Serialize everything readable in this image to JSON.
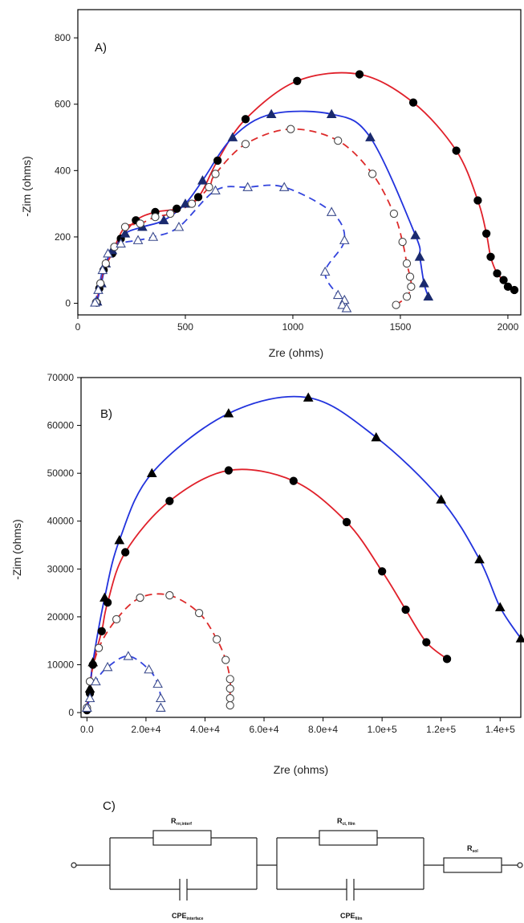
{
  "chart_data": [
    {
      "panel": "A)",
      "type": "scatter",
      "xlabel": "Zre (ohms)",
      "ylabel": "-Zim (ohms)",
      "xlim": [
        0,
        2060
      ],
      "ylim": [
        -35,
        885
      ],
      "xticks": [
        0,
        500,
        1000,
        1500,
        2000
      ],
      "yticks": [
        0,
        200,
        400,
        600,
        800
      ],
      "series": [
        {
          "marker": "filled-circle",
          "color": "#000000",
          "points": [
            [
              88,
              2
            ],
            [
              100,
              45
            ],
            [
              120,
              100
            ],
            [
              160,
              150
            ],
            [
              200,
              195
            ],
            [
              270,
              250
            ],
            [
              360,
              275
            ],
            [
              460,
              285
            ],
            [
              560,
              320
            ],
            [
              650,
              430
            ],
            [
              780,
              555
            ],
            [
              1020,
              670
            ],
            [
              1310,
              690
            ],
            [
              1560,
              605
            ],
            [
              1760,
              460
            ],
            [
              1860,
              310
            ],
            [
              1900,
              210
            ],
            [
              1920,
              140
            ],
            [
              1950,
              90
            ],
            [
              1980,
              70
            ],
            [
              2000,
              50
            ],
            [
              2030,
              40
            ]
          ]
        },
        {
          "marker": "filled-triangle",
          "color": "#1a2a6e",
          "points": [
            [
              90,
              5
            ],
            [
              110,
              60
            ],
            [
              130,
              120
            ],
            [
              160,
              160
            ],
            [
              220,
              210
            ],
            [
              300,
              230
            ],
            [
              400,
              250
            ],
            [
              500,
              300
            ],
            [
              580,
              370
            ],
            [
              720,
              500
            ],
            [
              900,
              570
            ],
            [
              1180,
              570
            ],
            [
              1360,
              500
            ],
            [
              1570,
              205
            ],
            [
              1590,
              140
            ],
            [
              1610,
              60
            ],
            [
              1630,
              20
            ]
          ]
        },
        {
          "marker": "open-circle",
          "color": "#444444",
          "points": [
            [
              85,
              3
            ],
            [
              105,
              60
            ],
            [
              130,
              120
            ],
            [
              170,
              170
            ],
            [
              220,
              230
            ],
            [
              290,
              240
            ],
            [
              360,
              260
            ],
            [
              430,
              270
            ],
            [
              530,
              300
            ],
            [
              610,
              350
            ],
            [
              640,
              390
            ],
            [
              780,
              480
            ],
            [
              990,
              525
            ],
            [
              1210,
              490
            ],
            [
              1370,
              390
            ],
            [
              1470,
              270
            ],
            [
              1510,
              185
            ],
            [
              1530,
              120
            ],
            [
              1545,
              80
            ],
            [
              1550,
              50
            ],
            [
              1530,
              20
            ],
            [
              1480,
              -5
            ]
          ]
        },
        {
          "marker": "open-triangle",
          "color": "#3a4a8c",
          "points": [
            [
              80,
              2
            ],
            [
              95,
              40
            ],
            [
              115,
              100
            ],
            [
              140,
              150
            ],
            [
              200,
              180
            ],
            [
              280,
              190
            ],
            [
              350,
              200
            ],
            [
              470,
              230
            ],
            [
              640,
              340
            ],
            [
              790,
              350
            ],
            [
              960,
              350
            ],
            [
              1180,
              275
            ],
            [
              1240,
              190
            ],
            [
              1150,
              95
            ],
            [
              1210,
              25
            ],
            [
              1240,
              10
            ],
            [
              1230,
              -5
            ],
            [
              1250,
              -15
            ]
          ]
        }
      ],
      "fits": [
        {
          "style": "solid",
          "color": "#e0202a"
        },
        {
          "style": "solid",
          "color": "#2233dd"
        },
        {
          "style": "dashed",
          "color": "#dd2a2a"
        },
        {
          "style": "dashed",
          "color": "#3344dd"
        }
      ]
    },
    {
      "panel": "B)",
      "type": "scatter",
      "xlabel": "Zre (ohms)",
      "ylabel": "-Zim (ohms)",
      "xlim": [
        -2000,
        147000
      ],
      "ylim": [
        -1000,
        70000
      ],
      "xticks": [
        0,
        20000,
        40000,
        60000,
        80000,
        100000,
        120000,
        140000
      ],
      "xticklabels": [
        "0.0",
        "2.0e+4",
        "4.0e+4",
        "6.0e+4",
        "8.0e+4",
        "1.0e+5",
        "1.2e+5",
        "1.4e+5"
      ],
      "yticks": [
        0,
        10000,
        20000,
        30000,
        40000,
        50000,
        60000,
        70000
      ],
      "series": [
        {
          "marker": "filled-circle",
          "color": "#000000",
          "points": [
            [
              0,
              500
            ],
            [
              1000,
              4000
            ],
            [
              2000,
              10000
            ],
            [
              5000,
              17000
            ],
            [
              7000,
              23000
            ],
            [
              13000,
              33500
            ],
            [
              28000,
              44200
            ],
            [
              48000,
              50600
            ],
            [
              70000,
              48400
            ],
            [
              88000,
              39800
            ],
            [
              100000,
              29500
            ],
            [
              108000,
              21500
            ],
            [
              115000,
              14700
            ],
            [
              122000,
              11200
            ]
          ]
        },
        {
          "marker": "filled-triangle",
          "color": "#000000",
          "points": [
            [
              0,
              1000
            ],
            [
              1000,
              5000
            ],
            [
              2000,
              10500
            ],
            [
              6000,
              24000
            ],
            [
              11000,
              36000
            ],
            [
              22000,
              50000
            ],
            [
              48000,
              62500
            ],
            [
              75000,
              65800
            ],
            [
              98000,
              57500
            ],
            [
              120000,
              44500
            ],
            [
              133000,
              32000
            ],
            [
              140000,
              22000
            ],
            [
              147000,
              15500
            ]
          ]
        },
        {
          "marker": "open-circle",
          "color": "#444444",
          "points": [
            [
              0,
              1000
            ],
            [
              1000,
              6500
            ],
            [
              4000,
              13500
            ],
            [
              10000,
              19500
            ],
            [
              18000,
              24000
            ],
            [
              28000,
              24500
            ],
            [
              38000,
              20800
            ],
            [
              44000,
              15300
            ],
            [
              47000,
              11000
            ],
            [
              48500,
              7000
            ],
            [
              48500,
              5000
            ],
            [
              48500,
              3000
            ],
            [
              48500,
              1500
            ]
          ]
        },
        {
          "marker": "open-triangle",
          "color": "#3a4a8c",
          "points": [
            [
              0,
              1000
            ],
            [
              1000,
              3000
            ],
            [
              3000,
              6500
            ],
            [
              7000,
              9500
            ],
            [
              14000,
              11800
            ],
            [
              21000,
              9000
            ],
            [
              24000,
              6000
            ],
            [
              25000,
              3000
            ],
            [
              25000,
              1000
            ]
          ]
        }
      ],
      "fits": [
        {
          "style": "solid",
          "color": "#e0202a"
        },
        {
          "style": "solid",
          "color": "#2233dd"
        },
        {
          "style": "dashed",
          "color": "#dd2a2a"
        },
        {
          "style": "dashed",
          "color": "#3344dd"
        }
      ]
    }
  ],
  "circuit": {
    "panel": "C)",
    "labels": {
      "r1": "R",
      "r1_sub": "rrr,interf",
      "r2": "R",
      "r2_sub": "ct, film",
      "r3": "R",
      "r3_sub": "sol",
      "cpe1": "CPE",
      "cpe1_sub": "interface",
      "cpe2": "CPE",
      "cpe2_sub": "film"
    }
  }
}
